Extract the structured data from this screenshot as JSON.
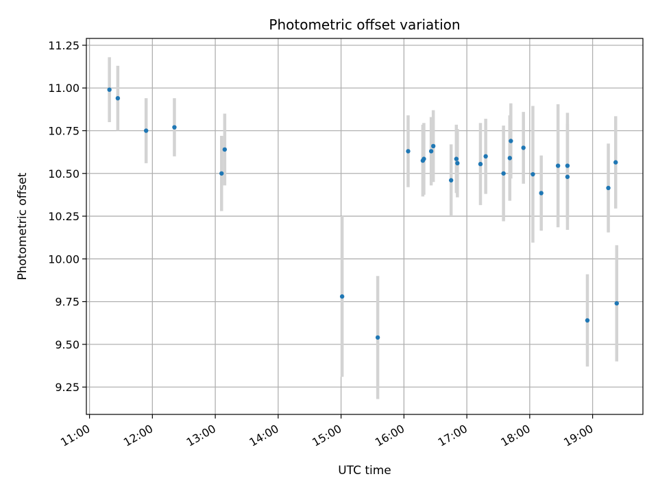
{
  "chart_data": {
    "type": "scatter",
    "title": "Photometric offset variation",
    "xlabel": "UTC time",
    "ylabel": "Photometric offset",
    "grid": true,
    "xlim": [
      "10:57",
      "19:48"
    ],
    "ylim": [
      9.09,
      11.29
    ],
    "x_ticks": [
      "11:00",
      "12:00",
      "13:00",
      "14:00",
      "15:00",
      "16:00",
      "17:00",
      "18:00",
      "19:00"
    ],
    "y_ticks": [
      "9.25",
      "9.50",
      "9.75",
      "10.00",
      "10.25",
      "10.50",
      "10.75",
      "11.00",
      "11.25"
    ],
    "colors": {
      "point": "#1f77b4",
      "errorbar": "#d3d3d3",
      "grid": "#b0b0b0"
    },
    "series": [
      {
        "points": [
          {
            "x": "11:19",
            "y": 10.99,
            "err": 0.19
          },
          {
            "x": "11:27",
            "y": 10.94,
            "err": 0.19
          },
          {
            "x": "11:54",
            "y": 10.75,
            "err": 0.19
          },
          {
            "x": "12:21",
            "y": 10.77,
            "err": 0.17
          },
          {
            "x": "13:06",
            "y": 10.5,
            "err": 0.22
          },
          {
            "x": "13:09",
            "y": 10.64,
            "err": 0.21
          },
          {
            "x": "15:01",
            "y": 9.78,
            "err": 0.47
          },
          {
            "x": "15:35",
            "y": 9.54,
            "err": 0.36
          },
          {
            "x": "16:04",
            "y": 10.63,
            "err": 0.21
          },
          {
            "x": "16:18",
            "y": 10.575,
            "err": 0.21
          },
          {
            "x": "16:19",
            "y": 10.585,
            "err": 0.21
          },
          {
            "x": "16:26",
            "y": 10.63,
            "err": 0.2
          },
          {
            "x": "16:28",
            "y": 10.66,
            "err": 0.21
          },
          {
            "x": "16:45",
            "y": 10.46,
            "err": 0.21
          },
          {
            "x": "16:50",
            "y": 10.585,
            "err": 0.2
          },
          {
            "x": "16:51",
            "y": 10.56,
            "err": 0.2
          },
          {
            "x": "17:13",
            "y": 10.555,
            "err": 0.24
          },
          {
            "x": "17:18",
            "y": 10.6,
            "err": 0.22
          },
          {
            "x": "17:35",
            "y": 10.5,
            "err": 0.28
          },
          {
            "x": "17:41",
            "y": 10.59,
            "err": 0.25
          },
          {
            "x": "17:42",
            "y": 10.69,
            "err": 0.22
          },
          {
            "x": "17:54",
            "y": 10.65,
            "err": 0.21
          },
          {
            "x": "18:03",
            "y": 10.495,
            "err": 0.4
          },
          {
            "x": "18:11",
            "y": 10.385,
            "err": 0.22
          },
          {
            "x": "18:27",
            "y": 10.545,
            "err": 0.36
          },
          {
            "x": "18:36",
            "y": 10.545,
            "err": 0.31
          },
          {
            "x": "18:36",
            "y": 10.48,
            "err": 0.31
          },
          {
            "x": "18:55",
            "y": 9.64,
            "err": 0.27
          },
          {
            "x": "19:15",
            "y": 10.415,
            "err": 0.26
          },
          {
            "x": "19:22",
            "y": 10.565,
            "err": 0.27
          },
          {
            "x": "19:23",
            "y": 9.74,
            "err": 0.34
          }
        ]
      }
    ]
  }
}
